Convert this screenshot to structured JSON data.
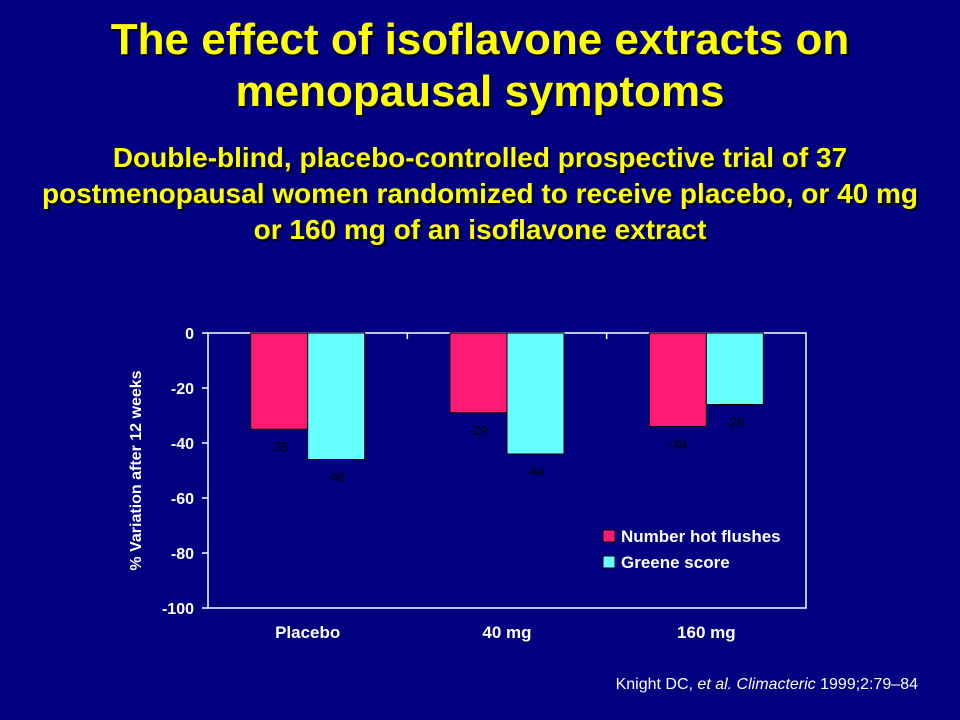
{
  "slide": {
    "title": "The effect of isoflavone extracts on menopausal symptoms",
    "subtitle": "Double-blind, placebo-controlled prospective trial of 37 postmenopausal women randomized to receive placebo, or 40 mg or 160 mg of an isoflavone extract",
    "citation": {
      "authors": "Knight DC, ",
      "etal": "et al. Climacteric",
      "ref": " 1999;2:79–84"
    }
  },
  "colors": {
    "background": "#000080",
    "title": "#FFFF00",
    "series1": "#FF1A75",
    "series2": "#66FFFF"
  },
  "chart_data": {
    "type": "bar",
    "categories": [
      "Placebo",
      "40 mg",
      "160 mg"
    ],
    "series": [
      {
        "name": "Number hot flushes",
        "values": [
          -35,
          -29,
          -34
        ],
        "color": "#FF1A75"
      },
      {
        "name": "Greene score",
        "values": [
          -46,
          -44,
          -26
        ],
        "color": "#66FFFF"
      }
    ],
    "ylabel": "% Variation after 12 weeks",
    "ylim": [
      -100,
      0
    ],
    "yticks": [
      0,
      -20,
      -40,
      -60,
      -80,
      -100
    ],
    "legend": "bottom-right",
    "grid": false
  }
}
